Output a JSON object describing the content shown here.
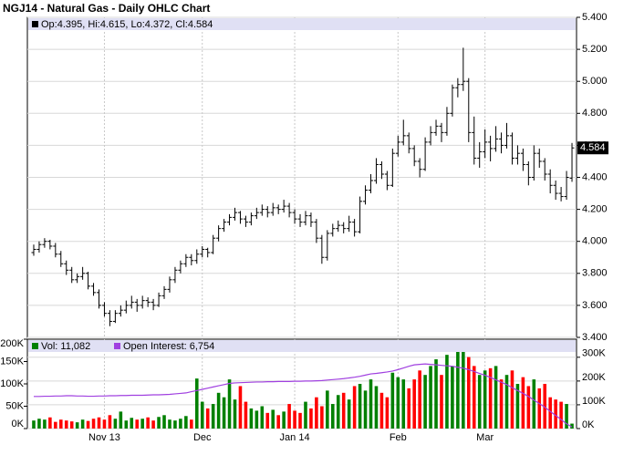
{
  "chart_data": [
    {
      "type": "ohlc",
      "title": "NGJ14 - Natural Gas - Daily OHLC Chart",
      "legend_text": "Op:4.395, Hi:4.615, Lo:4.372, Cl:4.584",
      "last_label": "4.584",
      "color": "#000000",
      "open": [
        3.93,
        3.95,
        3.98,
        4.0,
        3.97,
        3.92,
        3.86,
        3.82,
        3.76,
        3.78,
        3.8,
        3.72,
        3.68,
        3.6,
        3.55,
        3.5,
        3.55,
        3.57,
        3.6,
        3.62,
        3.6,
        3.63,
        3.62,
        3.6,
        3.66,
        3.7,
        3.76,
        3.82,
        3.86,
        3.9,
        3.88,
        3.92,
        3.95,
        3.93,
        4.02,
        4.08,
        4.12,
        4.15,
        4.18,
        4.14,
        4.12,
        4.16,
        4.18,
        4.2,
        4.18,
        4.21,
        4.2,
        4.22,
        4.18,
        4.14,
        4.12,
        4.16,
        4.12,
        4.02,
        3.9,
        4.05,
        4.08,
        4.1,
        4.08,
        4.12,
        4.06,
        4.25,
        4.32,
        4.38,
        4.48,
        4.42,
        4.35,
        4.55,
        4.62,
        4.66,
        4.58,
        4.5,
        4.45,
        4.62,
        4.68,
        4.72,
        4.68,
        4.8,
        4.96,
        4.98,
        5.0,
        4.68,
        4.52,
        4.56,
        4.62,
        4.58,
        4.64,
        4.6,
        4.66,
        4.52,
        4.55,
        4.48,
        4.4,
        4.55,
        4.5,
        4.42,
        4.35,
        4.3,
        4.28,
        4.395
      ],
      "high": [
        3.98,
        4.0,
        4.02,
        4.01,
        3.99,
        3.94,
        3.88,
        3.84,
        3.8,
        3.84,
        3.81,
        3.74,
        3.7,
        3.62,
        3.57,
        3.57,
        3.6,
        3.63,
        3.66,
        3.64,
        3.66,
        3.65,
        3.64,
        3.68,
        3.72,
        3.78,
        3.84,
        3.88,
        3.92,
        3.92,
        3.95,
        3.97,
        3.96,
        4.04,
        4.1,
        4.14,
        4.17,
        4.21,
        4.19,
        4.16,
        4.18,
        4.21,
        4.23,
        4.22,
        4.24,
        4.23,
        4.26,
        4.24,
        4.2,
        4.17,
        4.19,
        4.18,
        4.14,
        4.04,
        4.07,
        4.11,
        4.13,
        4.12,
        4.16,
        4.14,
        4.28,
        4.35,
        4.42,
        4.52,
        4.5,
        4.44,
        4.58,
        4.66,
        4.76,
        4.68,
        4.6,
        4.52,
        4.65,
        4.72,
        4.76,
        4.74,
        4.84,
        4.98,
        5.02,
        5.21,
        5.02,
        4.78,
        4.62,
        4.7,
        4.66,
        4.72,
        4.68,
        4.74,
        4.68,
        4.6,
        4.58,
        4.5,
        4.6,
        4.58,
        4.52,
        4.45,
        4.38,
        4.34,
        4.44,
        4.615
      ],
      "low": [
        3.91,
        3.93,
        3.96,
        3.95,
        3.9,
        3.84,
        3.79,
        3.74,
        3.74,
        3.76,
        3.7,
        3.66,
        3.58,
        3.53,
        3.47,
        3.49,
        3.53,
        3.55,
        3.58,
        3.56,
        3.58,
        3.59,
        3.57,
        3.59,
        3.64,
        3.68,
        3.74,
        3.8,
        3.84,
        3.85,
        3.86,
        3.9,
        3.9,
        3.92,
        4.0,
        4.06,
        4.1,
        4.13,
        4.11,
        4.09,
        4.1,
        4.14,
        4.16,
        4.15,
        4.16,
        4.17,
        4.18,
        4.15,
        4.11,
        4.09,
        4.1,
        4.09,
        3.99,
        3.86,
        3.88,
        4.03,
        4.06,
        4.05,
        4.06,
        4.03,
        4.05,
        4.23,
        4.3,
        4.36,
        4.39,
        4.32,
        4.34,
        4.53,
        4.6,
        4.55,
        4.47,
        4.4,
        4.44,
        4.6,
        4.66,
        4.62,
        4.66,
        4.78,
        4.9,
        4.94,
        4.62,
        4.48,
        4.46,
        4.52,
        4.5,
        4.56,
        4.55,
        4.58,
        4.48,
        4.48,
        4.44,
        4.35,
        4.38,
        4.46,
        4.38,
        4.3,
        4.26,
        4.25,
        4.26,
        4.372
      ],
      "close": [
        3.95,
        3.98,
        4.0,
        3.97,
        3.92,
        3.86,
        3.82,
        3.76,
        3.78,
        3.8,
        3.72,
        3.68,
        3.6,
        3.55,
        3.5,
        3.55,
        3.57,
        3.6,
        3.62,
        3.6,
        3.63,
        3.62,
        3.6,
        3.66,
        3.7,
        3.76,
        3.82,
        3.86,
        3.9,
        3.88,
        3.92,
        3.95,
        3.93,
        4.02,
        4.08,
        4.12,
        4.15,
        4.18,
        4.14,
        4.12,
        4.16,
        4.18,
        4.2,
        4.18,
        4.21,
        4.2,
        4.22,
        4.18,
        4.14,
        4.12,
        4.16,
        4.12,
        4.02,
        3.9,
        4.05,
        4.08,
        4.1,
        4.08,
        4.12,
        4.06,
        4.25,
        4.32,
        4.38,
        4.48,
        4.42,
        4.35,
        4.55,
        4.62,
        4.66,
        4.58,
        4.5,
        4.45,
        4.62,
        4.68,
        4.72,
        4.68,
        4.8,
        4.96,
        4.98,
        5.0,
        4.68,
        4.52,
        4.56,
        4.62,
        4.58,
        4.64,
        4.6,
        4.66,
        4.52,
        4.55,
        4.48,
        4.4,
        4.55,
        4.5,
        4.42,
        4.35,
        4.3,
        4.28,
        4.4,
        4.584
      ],
      "ylim": [
        3.4,
        5.4
      ],
      "yticks": [
        {
          "value": 3.4,
          "label": "3.400"
        },
        {
          "value": 3.6,
          "label": "3.600"
        },
        {
          "value": 3.8,
          "label": "3.800"
        },
        {
          "value": 4,
          "label": "4.000"
        },
        {
          "value": 4.2,
          "label": "4.200"
        },
        {
          "value": 4.4,
          "label": "4.400"
        },
        {
          "value": 4.6,
          "label": "4.600"
        },
        {
          "value": 4.8,
          "label": "4.800"
        },
        {
          "value": 5,
          "label": "5.000"
        },
        {
          "value": 5.2,
          "label": "5.200"
        },
        {
          "value": 5.4,
          "label": "5.400"
        }
      ]
    },
    {
      "type": "bar",
      "categories": [
        null,
        null,
        null,
        null,
        null,
        null,
        null,
        null,
        null,
        null,
        null,
        null,
        null,
        "Nov 13",
        null,
        null,
        null,
        null,
        null,
        null,
        null,
        null,
        null,
        null,
        null,
        null,
        null,
        null,
        null,
        null,
        null,
        "Dec",
        null,
        null,
        null,
        null,
        null,
        null,
        null,
        null,
        null,
        null,
        null,
        null,
        null,
        null,
        null,
        null,
        "Jan 14",
        null,
        null,
        null,
        null,
        null,
        null,
        null,
        null,
        null,
        null,
        null,
        null,
        null,
        null,
        null,
        null,
        null,
        null,
        "Feb",
        null,
        null,
        null,
        null,
        null,
        null,
        null,
        null,
        null,
        null,
        null,
        null,
        null,
        null,
        null,
        "Mar",
        null,
        null,
        null,
        null,
        null,
        null,
        null,
        null,
        null,
        null,
        null,
        null,
        null,
        null,
        null,
        null
      ],
      "up_color": "#008000",
      "down_color": "#ff0000",
      "series": [
        {
          "name": "Vol: 11,082",
          "color": "#008000",
          "values": [
            18000,
            22000,
            20000,
            25000,
            15000,
            20000,
            18000,
            16000,
            14000,
            20000,
            17000,
            22000,
            25000,
            20000,
            30000,
            22000,
            38000,
            18000,
            24000,
            20000,
            22000,
            25000,
            18000,
            26000,
            30000,
            20000,
            18000,
            22000,
            28000,
            20000,
            112000,
            60000,
            45000,
            55000,
            80000,
            70000,
            110000,
            65000,
            95000,
            60000,
            45000,
            40000,
            50000,
            35000,
            42000,
            30000,
            38000,
            55000,
            40000,
            35000,
            60000,
            45000,
            70000,
            50000,
            85000,
            55000,
            75000,
            80000,
            65000,
            95000,
            100000,
            85000,
            110000,
            95000,
            80000,
            70000,
            125000,
            115000,
            110000,
            90000,
            110000,
            130000,
            120000,
            140000,
            155000,
            120000,
            165000,
            140000,
            190000,
            182000,
            160000,
            140000,
            120000,
            130000,
            135000,
            140000,
            110000,
            120000,
            130000,
            100000,
            115000,
            95000,
            110000,
            90000,
            100000,
            70000,
            65000,
            60000,
            55000,
            11082
          ]
        },
        {
          "name": "Open Interest: 6,754",
          "color": "#a040e0",
          "axis": "y2",
          "values": [
            135000,
            135000,
            136000,
            136000,
            137000,
            137000,
            138000,
            138000,
            137000,
            137000,
            136000,
            136000,
            137000,
            137000,
            138000,
            138000,
            139000,
            139000,
            140000,
            140000,
            140000,
            141000,
            142000,
            142000,
            143000,
            144000,
            146000,
            148000,
            150000,
            155000,
            160000,
            165000,
            170000,
            175000,
            180000,
            185000,
            190000,
            192000,
            193000,
            194000,
            195000,
            196000,
            196000,
            197000,
            197000,
            198000,
            198000,
            198000,
            199000,
            199000,
            200000,
            200000,
            201000,
            202000,
            204000,
            206000,
            208000,
            210000,
            213000,
            216000,
            220000,
            225000,
            230000,
            232000,
            235000,
            238000,
            242000,
            248000,
            255000,
            262000,
            268000,
            270000,
            272000,
            270000,
            268000,
            266000,
            264000,
            262000,
            258000,
            254000,
            248000,
            240000,
            232000,
            224000,
            215000,
            205000,
            195000,
            185000,
            172000,
            160000,
            148000,
            135000,
            120000,
            105000,
            90000,
            72000,
            55000,
            38000,
            20000,
            6754
          ]
        }
      ],
      "ylim": [
        0,
        200000
      ],
      "yticks": [
        {
          "value": 0,
          "label": "0K"
        },
        {
          "value": 50000,
          "label": "50K"
        },
        {
          "value": 100000,
          "label": "100K"
        },
        {
          "value": 150000,
          "label": "150K"
        },
        {
          "value": 200000,
          "label": "200K"
        }
      ],
      "y2lim": [
        0,
        376000
      ],
      "y2ticks": [
        {
          "value": 0,
          "label": "0K"
        },
        {
          "value": 100000,
          "label": "100K"
        },
        {
          "value": 200000,
          "label": "200K"
        },
        {
          "value": 300000,
          "label": "300K"
        }
      ]
    }
  ]
}
